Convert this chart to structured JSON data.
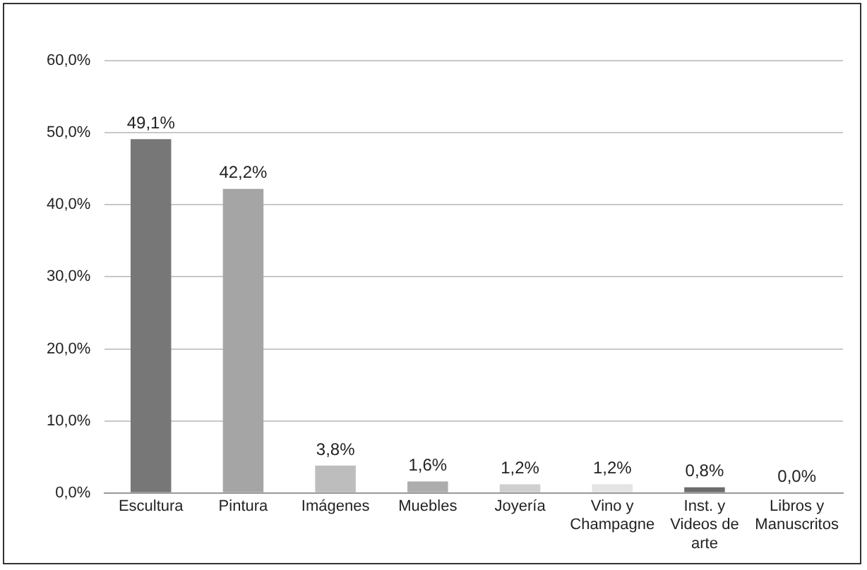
{
  "chart_data": {
    "type": "bar",
    "categories": [
      "Escultura",
      "Pintura",
      "Imágenes",
      "Muebles",
      "Joyería",
      "Vino y Champagne",
      "Inst. y Videos de arte",
      "Libros y Manuscritos"
    ],
    "values": [
      49.1,
      42.2,
      3.8,
      1.6,
      1.2,
      1.2,
      0.8,
      0.0
    ],
    "colors": [
      "#777777",
      "#a5a5a5",
      "#bdbdbd",
      "#adadad",
      "#cfcfcf",
      "#e4e4e4",
      "#6c6c6c",
      "#9a9a9a"
    ],
    "value_labels": [
      "49,1%",
      "42,2%",
      "3,8%",
      "1,6%",
      "1,2%",
      "1,2%",
      "0,8%",
      "0,0%"
    ],
    "ylim": [
      0,
      60
    ],
    "yticks": [
      {
        "value": 0,
        "label": "0,0%"
      },
      {
        "value": 10,
        "label": "10,0%"
      },
      {
        "value": 20,
        "label": "20,0%"
      },
      {
        "value": 30,
        "label": "30,0%"
      },
      {
        "value": 40,
        "label": "40,0%"
      },
      {
        "value": 50,
        "label": "50,0%"
      },
      {
        "value": 60,
        "label": "60,0%"
      }
    ],
    "grid": "y"
  }
}
